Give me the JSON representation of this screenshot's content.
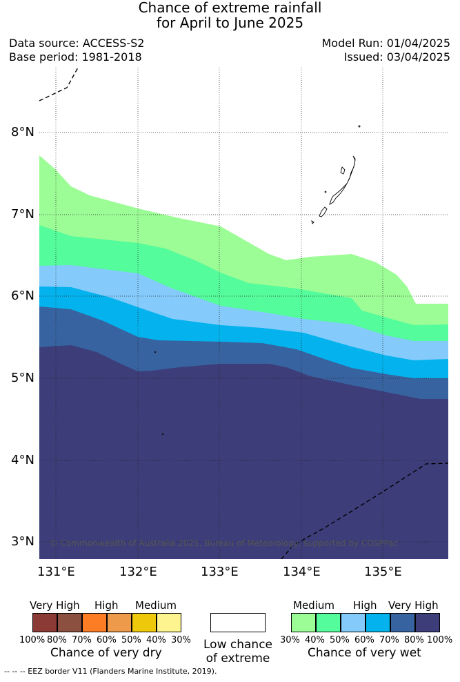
{
  "title": {
    "line1": "Chance of extreme rainfall",
    "line2": "for April to June 2025"
  },
  "header": {
    "data_source": "Data source: ACCESS-S2",
    "base_period": "Base period: 1981-2018",
    "model_run": "Model Run: 01/04/2025",
    "issued": "Issued: 03/04/2025"
  },
  "map": {
    "longitude_labels": [
      "131°E",
      "132°E",
      "133°E",
      "134°E",
      "135°E"
    ],
    "latitude_labels": [
      "8°N",
      "7°N",
      "6°N",
      "5°N",
      "4°N",
      "3°N"
    ],
    "copyright": "© Commonwealth of Australia 2025, Bureau of Meteorology, supported by COSPPac",
    "gridlines": true
  },
  "legend_dry": {
    "categories": [
      "Very High",
      "High",
      "Medium"
    ],
    "colors": [
      "#8b3a35",
      "#8c5040",
      "#fd7d24",
      "#ed9a4a",
      "#eec80a",
      "#fdf48f"
    ],
    "percent_labels": [
      "100%",
      "80%",
      "70%",
      "60%",
      "50%",
      "40%",
      "30%"
    ],
    "caption": "Chance of very dry"
  },
  "legend_low": {
    "line1": "Low chance",
    "line2": "of extreme"
  },
  "legend_wet": {
    "categories": [
      "Medium",
      "High",
      "Very High"
    ],
    "colors": [
      "#9cfc95",
      "#54fc9c",
      "#84cafa",
      "#04b3ed",
      "#3764a0",
      "#3d3d7a"
    ],
    "percent_labels": [
      "30%",
      "40%",
      "50%",
      "60%",
      "70%",
      "80%",
      "100%"
    ],
    "caption": "Chance of very wet"
  },
  "footer": {
    "eez_note": "-- -- -- EEZ border V11 (Flanders Marine Institute, 2019)."
  }
}
